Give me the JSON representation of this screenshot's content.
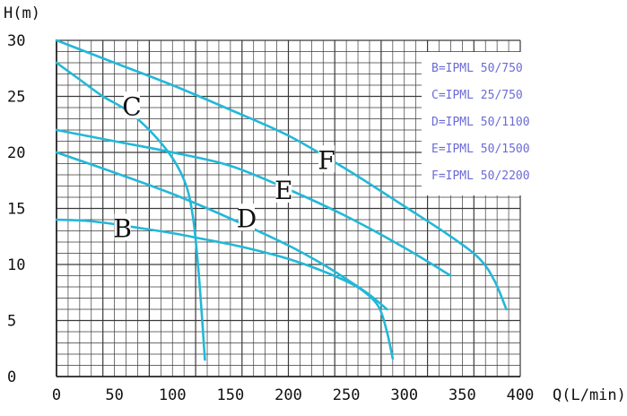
{
  "chart_data": {
    "type": "line",
    "xlabel": "Q(L/min)",
    "ylabel": "H(m)",
    "xlim": [
      0,
      400
    ],
    "ylim": [
      0,
      30
    ],
    "x_ticks": [
      0,
      50,
      100,
      150,
      200,
      250,
      300,
      350,
      400
    ],
    "y_ticks": [
      0,
      5,
      10,
      15,
      20,
      25,
      30
    ],
    "grid": true,
    "legend_placement": "top-right",
    "line_color": "#22b8d8",
    "legend_color": "#6b6bd6",
    "legend": [
      "B=IPML 50/750",
      "C=IPML 25/750",
      "D=IPML 50/1100",
      "E=IPML 50/1500",
      "F=IPML 50/2200"
    ],
    "series": [
      {
        "name": "B",
        "points": [
          [
            0,
            14
          ],
          [
            25,
            13.9
          ],
          [
            50,
            13.6
          ],
          [
            75,
            13.2
          ],
          [
            100,
            12.8
          ],
          [
            125,
            12.3
          ],
          [
            150,
            11.8
          ],
          [
            175,
            11.2
          ],
          [
            200,
            10.5
          ],
          [
            225,
            9.6
          ],
          [
            250,
            8.5
          ],
          [
            265,
            7.6
          ],
          [
            278,
            6.2
          ],
          [
            285,
            4.0
          ],
          [
            290,
            1.6
          ]
        ],
        "label_at": [
          57,
          12.6
        ]
      },
      {
        "name": "C",
        "points": [
          [
            0,
            28
          ],
          [
            20,
            26.5
          ],
          [
            40,
            25
          ],
          [
            60,
            23.8
          ],
          [
            80,
            22
          ],
          [
            100,
            19.5
          ],
          [
            112,
            17
          ],
          [
            118,
            14
          ],
          [
            122,
            10
          ],
          [
            125,
            6
          ],
          [
            128,
            1.5
          ]
        ],
        "label_at": [
          65,
          23.5
        ]
      },
      {
        "name": "D",
        "points": [
          [
            0,
            20
          ],
          [
            50,
            18.2
          ],
          [
            100,
            16.3
          ],
          [
            150,
            14.1
          ],
          [
            200,
            11.7
          ],
          [
            230,
            10
          ],
          [
            250,
            8.7
          ],
          [
            270,
            7.3
          ],
          [
            285,
            6.0
          ]
        ],
        "label_at": [
          164,
          13.5
        ]
      },
      {
        "name": "E",
        "points": [
          [
            0,
            22
          ],
          [
            50,
            21
          ],
          [
            100,
            20
          ],
          [
            150,
            18.8
          ],
          [
            200,
            16.7
          ],
          [
            250,
            14.3
          ],
          [
            300,
            11.5
          ],
          [
            340,
            9.0
          ]
        ],
        "label_at": [
          196,
          16
        ]
      },
      {
        "name": "F",
        "points": [
          [
            0,
            30
          ],
          [
            50,
            28
          ],
          [
            100,
            26
          ],
          [
            150,
            23.8
          ],
          [
            200,
            21.5
          ],
          [
            250,
            18.5
          ],
          [
            300,
            15.2
          ],
          [
            340,
            12.5
          ],
          [
            365,
            10.5
          ],
          [
            378,
            8.5
          ],
          [
            388,
            6.0
          ]
        ],
        "label_at": [
          233,
          18.7
        ]
      }
    ]
  }
}
